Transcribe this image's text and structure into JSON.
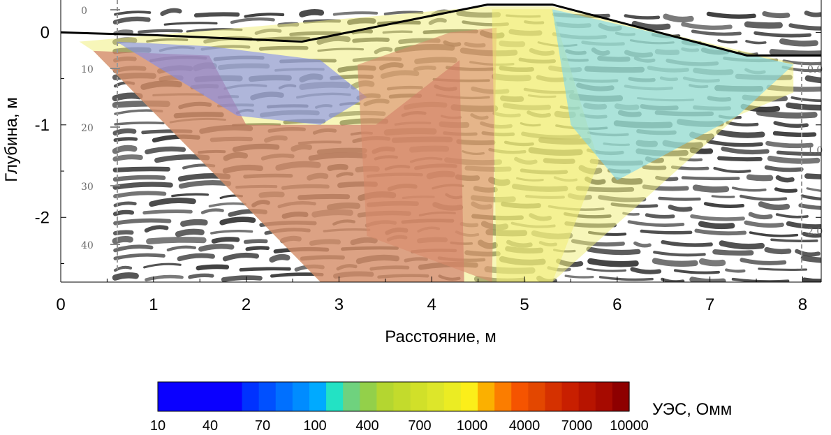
{
  "chart_data": {
    "type": "heatmap",
    "title": "",
    "xlabel": "Расстояние, м",
    "ylabel": "Глубина, м",
    "xlim": [
      0,
      8.2
    ],
    "ylim": [
      -2.7,
      0.35
    ],
    "xticks": [
      0,
      1,
      2,
      3,
      4,
      5,
      6,
      7,
      8
    ],
    "yticks": [
      0,
      -1,
      -2
    ],
    "ytick_labels": [
      "0",
      "-1",
      "-2"
    ],
    "surface_profile": {
      "x": [
        0,
        1,
        2.6,
        4.6,
        5.3,
        7.4,
        8.2
      ],
      "y": [
        0,
        -0.03,
        -0.1,
        0.3,
        0.3,
        -0.25,
        -0.25
      ]
    },
    "section_polygon": {
      "x": [
        0.2,
        4.6,
        5.3,
        7.9,
        7.9,
        7.3,
        5.3,
        2.8,
        0.35
      ],
      "y": [
        -0.1,
        0.28,
        0.28,
        -0.33,
        -0.65,
        -0.9,
        -2.7,
        -2.7,
        -0.2
      ]
    },
    "zones": [
      {
        "name": "west-high",
        "color": "#c96a60",
        "polygon": {
          "x": [
            0.35,
            1.6,
            2.0,
            3.4,
            4.3,
            4.35,
            2.8
          ],
          "y": [
            -0.2,
            -0.25,
            -1.0,
            -1.0,
            -0.3,
            -2.7,
            -2.7
          ]
        }
      },
      {
        "name": "west-low",
        "color": "#7f8cf0",
        "polygon": {
          "x": [
            0.6,
            1.6,
            2.8,
            3.3,
            2.8,
            1.9
          ],
          "y": [
            -0.1,
            -0.15,
            -0.3,
            -0.7,
            -1.0,
            -0.9
          ]
        }
      },
      {
        "name": "center-high",
        "color": "#d98a6a",
        "polygon": {
          "x": [
            3.2,
            4.2,
            4.7,
            4.65,
            3.3
          ],
          "y": [
            -0.35,
            0.0,
            0.05,
            -2.7,
            -2.2
          ]
        }
      },
      {
        "name": "center-mid",
        "color": "#f2ee7a",
        "polygon": {
          "x": [
            4.65,
            5.3,
            5.8,
            5.3,
            4.7
          ],
          "y": [
            0.25,
            0.25,
            -1.4,
            -2.7,
            -2.7
          ]
        }
      },
      {
        "name": "east-low",
        "color": "#7ad7f0",
        "polygon": {
          "x": [
            5.3,
            7.9,
            7.3,
            6.0,
            5.5
          ],
          "y": [
            0.25,
            -0.35,
            -0.9,
            -1.6,
            -1.0
          ]
        }
      }
    ],
    "gpr_left_ticks": [
      "0",
      "10",
      "20",
      "30",
      "40"
    ],
    "gpr_right_ticks": [
      "0.0",
      "1.0",
      "2.0"
    ],
    "colorbar": {
      "label": "УЭС, Омм",
      "tick_labels": [
        "10",
        "40",
        "70",
        "100",
        "400",
        "700",
        "1000",
        "4000",
        "7000",
        "10000"
      ],
      "colors": [
        "#0a00ff",
        "#0a00ff",
        "#0a00ff",
        "#0a00ff",
        "#0a00ff",
        "#0032ff",
        "#0050ff",
        "#0070ff",
        "#008cff",
        "#00aaff",
        "#23e2c4",
        "#6fd27e",
        "#93d04a",
        "#b4d630",
        "#c3db2c",
        "#d1e029",
        "#dde62a",
        "#ebec23",
        "#fbee1a",
        "#fbb000",
        "#fb7d00",
        "#f55400",
        "#e34700",
        "#d53100",
        "#c81f00",
        "#b71400",
        "#a60a00",
        "#8e0000"
      ]
    }
  }
}
